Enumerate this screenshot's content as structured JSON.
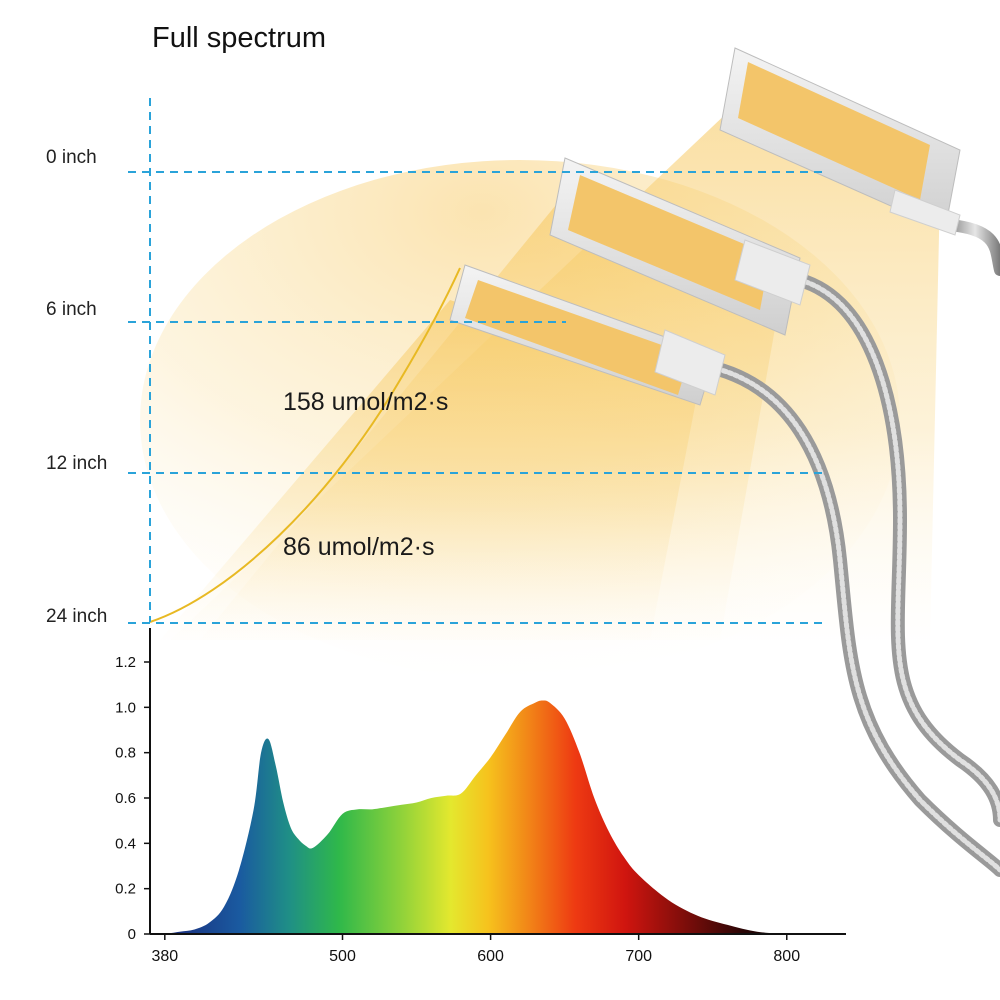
{
  "title": "Full spectrum",
  "distances": [
    {
      "label": "0 inch"
    },
    {
      "label": "6 inch"
    },
    {
      "label": "12 inch"
    },
    {
      "label": "24 inch"
    }
  ],
  "ppfd": [
    {
      "label": "158 umol/m2·s",
      "distance_between": [
        "6 inch",
        "12 inch"
      ]
    },
    {
      "label": "86 umol/m2·s",
      "distance_between": [
        "12 inch",
        "24 inch"
      ]
    }
  ],
  "colors": {
    "guide_lines": "#2aa3d9",
    "light_beam": "#f7c65a",
    "curve": "#e8b923"
  },
  "chart_data": {
    "type": "area",
    "title": "",
    "xlabel": "",
    "ylabel": "",
    "xlim": [
      370,
      840
    ],
    "ylim": [
      0,
      1.35
    ],
    "xticks": [
      380,
      500,
      600,
      700,
      800
    ],
    "yticks": [
      0,
      0.2,
      0.4,
      0.6,
      0.8,
      1.0,
      1.2
    ],
    "ytick_labels": [
      "0",
      "0.2",
      "0.4",
      "0.6",
      "0.8",
      "1.0",
      "1.2"
    ],
    "x": [
      380,
      390,
      400,
      410,
      420,
      430,
      440,
      445,
      450,
      455,
      460,
      465,
      470,
      475,
      480,
      490,
      500,
      510,
      520,
      530,
      540,
      550,
      560,
      570,
      580,
      590,
      600,
      610,
      620,
      630,
      635,
      640,
      650,
      660,
      670,
      680,
      690,
      700,
      720,
      740,
      760,
      780,
      800
    ],
    "y": [
      0,
      0.01,
      0.02,
      0.05,
      0.12,
      0.28,
      0.55,
      0.8,
      0.86,
      0.74,
      0.58,
      0.47,
      0.42,
      0.39,
      0.38,
      0.44,
      0.53,
      0.55,
      0.55,
      0.56,
      0.57,
      0.58,
      0.6,
      0.61,
      0.62,
      0.7,
      0.78,
      0.88,
      0.98,
      1.02,
      1.03,
      1.02,
      0.95,
      0.8,
      0.6,
      0.45,
      0.34,
      0.26,
      0.15,
      0.08,
      0.04,
      0.01,
      0
    ]
  }
}
